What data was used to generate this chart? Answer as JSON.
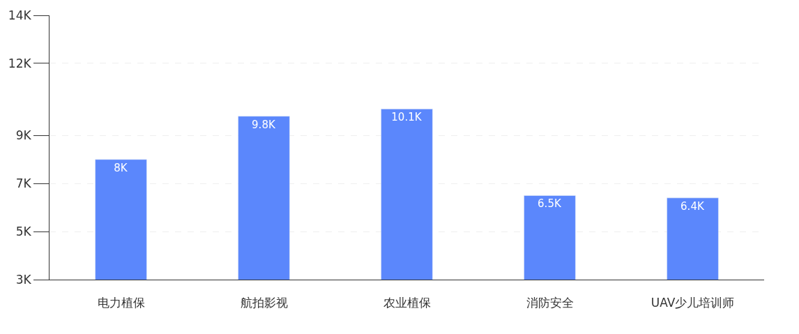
{
  "chart_data": {
    "type": "bar",
    "categories": [
      "电力植保",
      "航拍影视",
      "农业植保",
      "消防安全",
      "UAV少儿培训师"
    ],
    "values": [
      8,
      9.8,
      10.1,
      6.5,
      6.4
    ],
    "value_labels": [
      "8K",
      "9.8K",
      "10.1K",
      "6.5K",
      "6.4K"
    ],
    "color": "#5b87fc",
    "ylim": [
      3,
      14
    ],
    "yticks": [
      {
        "value": 3,
        "label": "3K"
      },
      {
        "value": 5,
        "label": "5K"
      },
      {
        "value": 7,
        "label": "7K"
      },
      {
        "value": 9,
        "label": "9K"
      },
      {
        "value": 12,
        "label": "12K"
      },
      {
        "value": 14,
        "label": "14K"
      }
    ],
    "grid": "y",
    "legend": false
  }
}
